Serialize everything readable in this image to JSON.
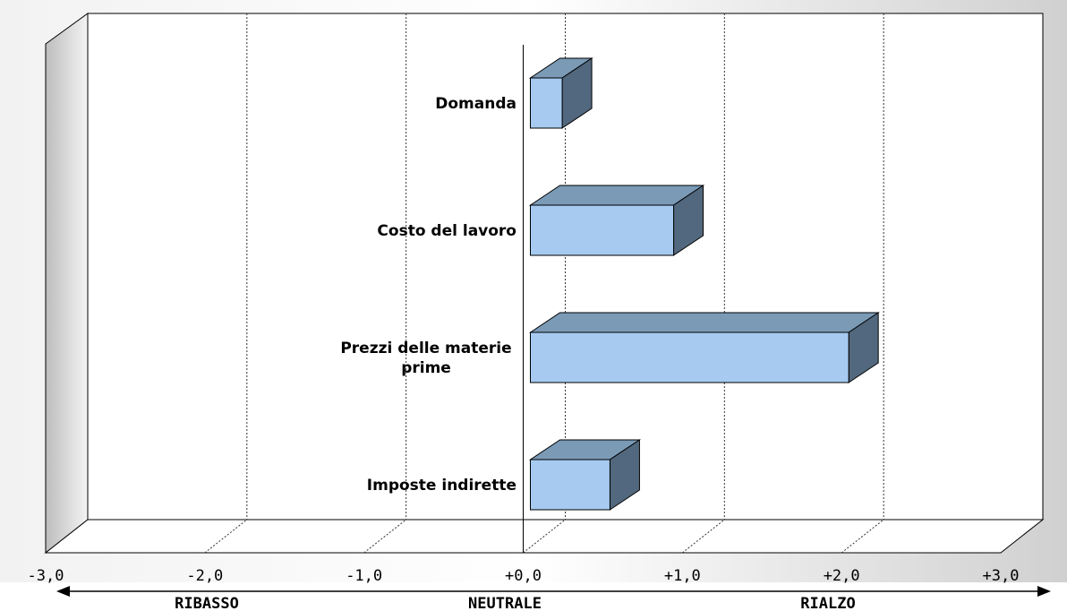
{
  "chart_data": {
    "type": "bar",
    "orientation": "horizontal",
    "style": "3d",
    "categories": [
      "Domanda",
      "Costo del lavoro",
      "Prezzi delle materie prime",
      "Imposte indirette"
    ],
    "category_lines": [
      [
        "Domanda"
      ],
      [
        "Costo del lavoro"
      ],
      [
        "Prezzi delle materie",
        "prime"
      ],
      [
        "Imposte indirette"
      ]
    ],
    "values": [
      0.2,
      0.9,
      2.0,
      0.5
    ],
    "xlim": [
      -3.0,
      3.0
    ],
    "ticks": [
      -3,
      -2,
      -1,
      0,
      1,
      2,
      3
    ],
    "tick_labels": [
      "-3,0",
      "-2,0",
      "-1,0",
      "+0,0",
      "+1,0",
      "+2,0",
      "+3,0"
    ],
    "direction_labels": {
      "left": "RIBASSO",
      "center": "NEUTRALE",
      "right": "RIALZO"
    },
    "grid": true,
    "colors": {
      "bar_front": "#A6CAF0",
      "bar_top": "#7A9AB6",
      "bar_side": "#52687E",
      "back_wall": "#FFFFFF",
      "side_wall_dark": "#B4B4B4"
    }
  }
}
